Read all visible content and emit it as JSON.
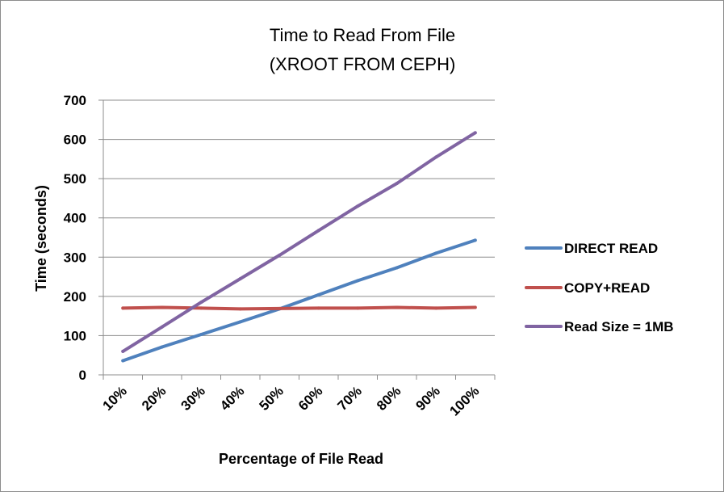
{
  "chart_data": {
    "type": "line",
    "title": "Time to Read From File",
    "subtitle": "(XROOT FROM CEPH)",
    "xlabel": "Percentage of File Read",
    "ylabel": "Time (seconds)",
    "categories": [
      "10%",
      "20%",
      "30%",
      "40%",
      "50%",
      "60%",
      "70%",
      "80%",
      "90%",
      "100%"
    ],
    "ylim": [
      0,
      700
    ],
    "yticks": [
      "0",
      "100",
      "200",
      "300",
      "400",
      "500",
      "600",
      "700"
    ],
    "grid": true,
    "legend": "right",
    "series": [
      {
        "name": "DIRECT READ",
        "color": "#4f81bd",
        "values": [
          36,
          71,
          103,
          135,
          168,
          204,
          240,
          273,
          310,
          343
        ]
      },
      {
        "name": "COPY+READ",
        "color": "#c0504d",
        "values": [
          170,
          172,
          170,
          168,
          169,
          170,
          170,
          172,
          170,
          172
        ]
      },
      {
        "name": "Read Size = 1MB",
        "color": "#8064a2",
        "values": [
          60,
          122,
          185,
          245,
          305,
          368,
          430,
          488,
          555,
          617
        ]
      }
    ]
  }
}
